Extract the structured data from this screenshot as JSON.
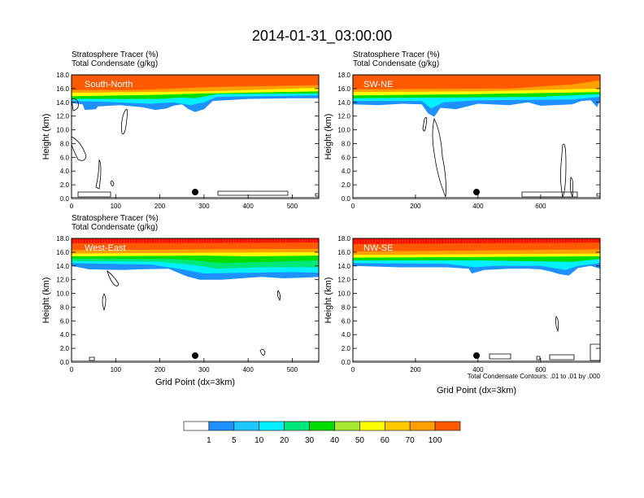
{
  "page_title": "2014-01-31_03:00:00",
  "footnote": "Total Condensate Contours: .01 to .01 by .000",
  "colors": {
    "levels": [
      "#ffffff",
      "#1e90ff",
      "#1ec8ff",
      "#00f0ff",
      "#00e87a",
      "#00dd00",
      "#a8e830",
      "#ffff00",
      "#ffc800",
      "#ff9f00",
      "#ff5a00",
      "#ff0000"
    ],
    "contour": "#000000",
    "marker": "#000000"
  },
  "colorbar_labels": [
    "1",
    "5",
    "10",
    "20",
    "30",
    "40",
    "50",
    "60",
    "70",
    "100"
  ],
  "chart_data": [
    {
      "type": "heatmap",
      "section": "South-North",
      "field_labels": [
        "Stratosphere Tracer   (%)",
        "Total Condensate   (g/kg)"
      ],
      "ylabel": "Height (km)",
      "xlabel": "",
      "xlim": [
        0,
        560
      ],
      "ylim": [
        0,
        18
      ],
      "xticks": [
        "0",
        "100",
        "200",
        "300",
        "400",
        "500"
      ],
      "yticks": [
        "0.0",
        "2.0",
        "4.0",
        "6.0",
        "8.0",
        "10.0",
        "12.0",
        "14.0",
        "16.0",
        "18.0"
      ],
      "marker_x": 280,
      "tracer_layers": [
        {
          "level": 1,
          "base": [
            [
              0,
              13.9
            ],
            [
              25,
              13.7
            ],
            [
              30,
              12.9
            ],
            [
              55,
              13.0
            ],
            [
              60,
              13.4
            ],
            [
              110,
              13.6
            ],
            [
              160,
              13.3
            ],
            [
              190,
              12.9
            ],
            [
              215,
              13.1
            ],
            [
              230,
              13.5
            ],
            [
              250,
              13.7
            ],
            [
              265,
              13.0
            ],
            [
              280,
              12.6
            ],
            [
              300,
              13.0
            ],
            [
              320,
              14.2
            ],
            [
              400,
              14.5
            ],
            [
              500,
              14.6
            ],
            [
              560,
              14.6
            ]
          ]
        },
        {
          "level": 3,
          "base": [
            [
              0,
              14.2
            ],
            [
              60,
              14.1
            ],
            [
              180,
              13.8
            ],
            [
              230,
              14.0
            ],
            [
              270,
              13.6
            ],
            [
              300,
              14.0
            ],
            [
              330,
              14.8
            ],
            [
              560,
              15.0
            ]
          ]
        },
        {
          "level": 5,
          "base": [
            [
              0,
              14.5
            ],
            [
              200,
              14.5
            ],
            [
              250,
              14.7
            ],
            [
              280,
              14.6
            ],
            [
              330,
              15.2
            ],
            [
              560,
              15.3
            ]
          ]
        },
        {
          "level": 7,
          "base": [
            [
              0,
              14.9
            ],
            [
              200,
              15.1
            ],
            [
              300,
              15.3
            ],
            [
              560,
              15.6
            ]
          ]
        },
        {
          "level": 9,
          "base": [
            [
              0,
              15.4
            ],
            [
              300,
              15.6
            ],
            [
              560,
              16.1
            ]
          ]
        },
        {
          "level": 10,
          "base": [
            [
              0,
              15.8
            ],
            [
              150,
              15.8
            ],
            [
              300,
              16.2
            ],
            [
              560,
              16.5
            ]
          ]
        }
      ]
    },
    {
      "type": "heatmap",
      "section": "SW-NE",
      "field_labels": [
        "Stratosphere Tracer   (%)",
        "Total Condensate   (g/kg)"
      ],
      "ylabel": "Height (km)",
      "xlabel": "",
      "xlim": [
        0,
        790
      ],
      "ylim": [
        0,
        18
      ],
      "xticks": [
        "0",
        "200",
        "400",
        "600"
      ],
      "yticks": [
        "0.0",
        "2.0",
        "4.0",
        "6.0",
        "8.0",
        "10.0",
        "12.0",
        "14.0",
        "16.0",
        "18.0"
      ],
      "marker_x": 395,
      "tracer_layers": [
        {
          "level": 1,
          "base": [
            [
              0,
              13.7
            ],
            [
              80,
              13.6
            ],
            [
              160,
              13.8
            ],
            [
              220,
              13.7
            ],
            [
              240,
              12.4
            ],
            [
              260,
              11.9
            ],
            [
              280,
              13.2
            ],
            [
              330,
              13.0
            ],
            [
              400,
              13.8
            ],
            [
              500,
              13.6
            ],
            [
              560,
              14.0
            ],
            [
              600,
              13.5
            ],
            [
              700,
              13.7
            ],
            [
              730,
              14.2
            ],
            [
              760,
              14.3
            ],
            [
              780,
              13.3
            ],
            [
              790,
              14.3
            ]
          ]
        },
        {
          "level": 3,
          "base": [
            [
              0,
              14.2
            ],
            [
              220,
              14.2
            ],
            [
              250,
              13.1
            ],
            [
              290,
              14.0
            ],
            [
              400,
              14.3
            ],
            [
              700,
              14.4
            ],
            [
              790,
              14.8
            ]
          ]
        },
        {
          "level": 5,
          "base": [
            [
              0,
              14.6
            ],
            [
              300,
              14.7
            ],
            [
              600,
              14.8
            ],
            [
              790,
              15.2
            ]
          ]
        },
        {
          "level": 7,
          "base": [
            [
              0,
              15.0
            ],
            [
              400,
              15.2
            ],
            [
              790,
              15.5
            ]
          ]
        },
        {
          "level": 9,
          "base": [
            [
              0,
              15.5
            ],
            [
              400,
              15.6
            ],
            [
              790,
              16.0
            ]
          ]
        },
        {
          "level": 10,
          "base": [
            [
              0,
              15.9
            ],
            [
              500,
              16.0
            ],
            [
              700,
              16.6
            ],
            [
              790,
              17.2
            ]
          ]
        }
      ]
    },
    {
      "type": "heatmap",
      "section": "West-East",
      "field_labels": [
        "Stratosphere Tracer   (%)",
        "Total Condensate   (g/kg)"
      ],
      "ylabel": "Height (km)",
      "xlabel": "Grid Point (dx=3km)",
      "xlim": [
        0,
        560
      ],
      "ylim": [
        0,
        18
      ],
      "xticks": [
        "0",
        "100",
        "200",
        "300",
        "400",
        "500"
      ],
      "yticks": [
        "0.0",
        "2.0",
        "4.0",
        "6.0",
        "8.0",
        "10.0",
        "12.0",
        "14.0",
        "16.0",
        "18.0"
      ],
      "marker_x": 280,
      "tracer_layers": [
        {
          "level": 1,
          "base": [
            [
              0,
              14.0
            ],
            [
              40,
              13.5
            ],
            [
              120,
              13.4
            ],
            [
              150,
              13.5
            ],
            [
              220,
              13.6
            ],
            [
              260,
              12.5
            ],
            [
              290,
              12.0
            ],
            [
              340,
              12.0
            ],
            [
              430,
              12.4
            ],
            [
              480,
              12.2
            ],
            [
              530,
              12.3
            ],
            [
              560,
              12.4
            ]
          ]
        },
        {
          "level": 3,
          "base": [
            [
              0,
              14.4
            ],
            [
              180,
              14.2
            ],
            [
              250,
              13.5
            ],
            [
              300,
              12.9
            ],
            [
              400,
              13.0
            ],
            [
              500,
              13.1
            ],
            [
              560,
              13.0
            ]
          ]
        },
        {
          "level": 4,
          "base": [
            [
              0,
              14.7
            ],
            [
              200,
              14.6
            ],
            [
              270,
              14.2
            ],
            [
              330,
              13.6
            ],
            [
              430,
              13.8
            ],
            [
              560,
              13.8
            ]
          ]
        },
        {
          "level": 5,
          "base": [
            [
              0,
              15.0
            ],
            [
              230,
              15.0
            ],
            [
              280,
              14.8
            ],
            [
              340,
              14.4
            ],
            [
              450,
              14.6
            ],
            [
              560,
              14.8
            ]
          ]
        },
        {
          "level": 7,
          "base": [
            [
              0,
              15.4
            ],
            [
              300,
              15.5
            ],
            [
              400,
              15.4
            ],
            [
              560,
              15.5
            ]
          ]
        },
        {
          "level": 9,
          "base": [
            [
              0,
              15.8
            ],
            [
              560,
              16.0
            ]
          ]
        },
        {
          "level": 10,
          "base": [
            [
              0,
              16.3
            ],
            [
              560,
              16.5
            ]
          ]
        },
        {
          "level": 11,
          "base": [
            [
              0,
              17.3
            ],
            [
              560,
              17.4
            ]
          ]
        }
      ]
    },
    {
      "type": "heatmap",
      "section": "NW-SE",
      "field_labels": [],
      "ylabel": "Height (km)",
      "xlabel": "Grid Point (dx=3km)",
      "xlim": [
        0,
        790
      ],
      "ylim": [
        0,
        18
      ],
      "xticks": [
        "0",
        "200",
        "400",
        "600"
      ],
      "yticks": [
        "0.0",
        "2.0",
        "4.0",
        "6.0",
        "8.0",
        "10.0",
        "12.0",
        "14.0",
        "16.0",
        "18.0"
      ],
      "marker_x": 395,
      "tracer_layers": [
        {
          "level": 1,
          "base": [
            [
              0,
              14.0
            ],
            [
              150,
              13.8
            ],
            [
              300,
              13.8
            ],
            [
              370,
              13.6
            ],
            [
              380,
              12.9
            ],
            [
              420,
              13.4
            ],
            [
              500,
              13.6
            ],
            [
              560,
              13.6
            ],
            [
              600,
              13.5
            ],
            [
              630,
              13.2
            ],
            [
              660,
              12.8
            ],
            [
              690,
              12.6
            ],
            [
              720,
              13.7
            ],
            [
              760,
              14.0
            ],
            [
              790,
              13.6
            ]
          ]
        },
        {
          "level": 3,
          "base": [
            [
              0,
              14.4
            ],
            [
              300,
              14.3
            ],
            [
              390,
              13.8
            ],
            [
              450,
              14.0
            ],
            [
              600,
              14.0
            ],
            [
              680,
              13.4
            ],
            [
              720,
              14.0
            ],
            [
              790,
              14.4
            ]
          ]
        },
        {
          "level": 5,
          "base": [
            [
              0,
              14.8
            ],
            [
              400,
              14.8
            ],
            [
              700,
              14.6
            ],
            [
              790,
              15.0
            ]
          ]
        },
        {
          "level": 7,
          "base": [
            [
              0,
              15.2
            ],
            [
              790,
              15.4
            ]
          ]
        },
        {
          "level": 9,
          "base": [
            [
              0,
              15.6
            ],
            [
              790,
              15.8
            ]
          ]
        },
        {
          "level": 10,
          "base": [
            [
              0,
              16.1
            ],
            [
              790,
              16.4
            ]
          ]
        },
        {
          "level": 11,
          "base": [
            [
              0,
              17.2
            ],
            [
              790,
              17.4
            ]
          ]
        }
      ]
    }
  ]
}
